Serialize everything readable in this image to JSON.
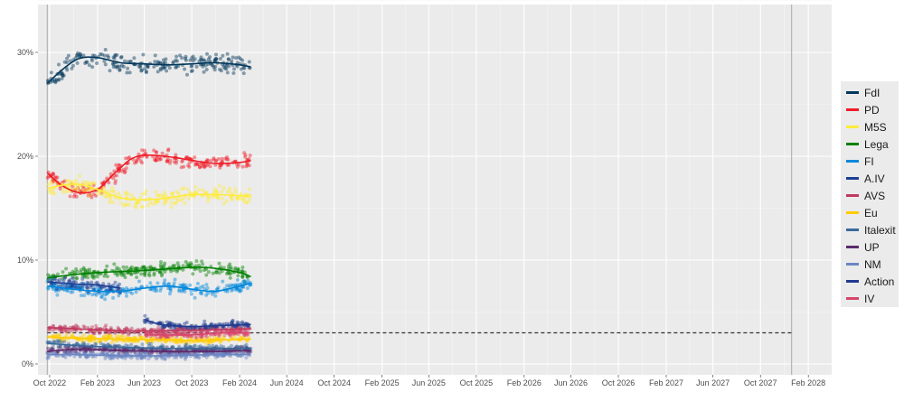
{
  "chart_data": {
    "type": "scatter",
    "title": "",
    "xlabel": "",
    "ylabel": "",
    "x_range": [
      "2022-09-01",
      "2028-04-01"
    ],
    "ylim": [
      0,
      34
    ],
    "y_ticks": [
      {
        "value": 0,
        "label": "0%"
      },
      {
        "value": 10,
        "label": "10%"
      },
      {
        "value": 20,
        "label": "20%"
      },
      {
        "value": 30,
        "label": "30%"
      }
    ],
    "x_ticks": [
      {
        "date": "2022-10-01",
        "label": "Oct 2022"
      },
      {
        "date": "2023-02-01",
        "label": "Feb 2023"
      },
      {
        "date": "2023-06-01",
        "label": "Jun 2023"
      },
      {
        "date": "2023-10-01",
        "label": "Oct 2023"
      },
      {
        "date": "2024-02-01",
        "label": "Feb 2024"
      },
      {
        "date": "2024-06-01",
        "label": "Jun 2024"
      },
      {
        "date": "2024-10-01",
        "label": "Oct 2024"
      },
      {
        "date": "2025-02-01",
        "label": "Feb 2025"
      },
      {
        "date": "2025-06-01",
        "label": "Jun 2025"
      },
      {
        "date": "2025-10-01",
        "label": "Oct 2025"
      },
      {
        "date": "2026-02-01",
        "label": "Feb 2026"
      },
      {
        "date": "2026-06-01",
        "label": "Jun 2026"
      },
      {
        "date": "2026-10-01",
        "label": "Oct 2026"
      },
      {
        "date": "2027-02-01",
        "label": "Feb 2027"
      },
      {
        "date": "2027-06-01",
        "label": "Jun 2027"
      },
      {
        "date": "2027-10-01",
        "label": "Oct 2027"
      },
      {
        "date": "2028-02-01",
        "label": "Feb 2028"
      }
    ],
    "grid": true,
    "legend_position": "right",
    "vertical_lines": [
      "2022-09-25",
      "2027-12-20"
    ],
    "threshold": {
      "value": 3,
      "from": "2022-09-25",
      "to": "2027-12-20",
      "style": "dashed"
    },
    "series": [
      {
        "name": "FdI",
        "color": "#03385c",
        "trend": [
          [
            "2022-09-25",
            27.0
          ],
          [
            "2022-11-01",
            28.3
          ],
          [
            "2022-12-15",
            29.4
          ],
          [
            "2023-02-01",
            29.5
          ],
          [
            "2023-04-01",
            29.0
          ],
          [
            "2023-06-01",
            28.9
          ],
          [
            "2023-08-01",
            28.8
          ],
          [
            "2023-10-01",
            28.9
          ],
          [
            "2023-12-01",
            29.0
          ],
          [
            "2024-02-01",
            28.8
          ],
          [
            "2024-03-01",
            28.6
          ]
        ]
      },
      {
        "name": "PD",
        "color": "#ef1c27",
        "trend": [
          [
            "2022-09-25",
            18.4
          ],
          [
            "2022-11-01",
            17.2
          ],
          [
            "2022-12-15",
            16.5
          ],
          [
            "2023-02-01",
            16.8
          ],
          [
            "2023-03-15",
            18.3
          ],
          [
            "2023-05-01",
            19.8
          ],
          [
            "2023-06-15",
            20.1
          ],
          [
            "2023-08-15",
            19.9
          ],
          [
            "2023-10-01",
            19.6
          ],
          [
            "2023-12-01",
            19.3
          ],
          [
            "2024-02-01",
            19.4
          ],
          [
            "2024-03-01",
            19.6
          ]
        ]
      },
      {
        "name": "M5S",
        "color": "#ffeb3b",
        "trend": [
          [
            "2022-09-25",
            16.9
          ],
          [
            "2022-11-01",
            17.2
          ],
          [
            "2022-12-15",
            17.3
          ],
          [
            "2023-02-01",
            16.8
          ],
          [
            "2023-04-01",
            16.0
          ],
          [
            "2023-06-01",
            15.8
          ],
          [
            "2023-08-01",
            16.0
          ],
          [
            "2023-10-01",
            16.3
          ],
          [
            "2023-12-01",
            16.3
          ],
          [
            "2024-02-01",
            16.2
          ],
          [
            "2024-03-01",
            16.1
          ]
        ]
      },
      {
        "name": "Lega",
        "color": "#008000",
        "trend": [
          [
            "2022-09-25",
            8.3
          ],
          [
            "2022-12-01",
            8.6
          ],
          [
            "2023-02-01",
            8.8
          ],
          [
            "2023-06-01",
            9.0
          ],
          [
            "2023-10-01",
            9.3
          ],
          [
            "2023-12-01",
            9.2
          ],
          [
            "2024-02-01",
            8.8
          ],
          [
            "2024-03-01",
            8.4
          ]
        ]
      },
      {
        "name": "FI",
        "color": "#0087dc",
        "trend": [
          [
            "2022-09-25",
            7.5
          ],
          [
            "2022-12-01",
            7.2
          ],
          [
            "2023-02-01",
            7.0
          ],
          [
            "2023-04-01",
            7.0
          ],
          [
            "2023-06-01",
            7.3
          ],
          [
            "2023-08-01",
            7.5
          ],
          [
            "2023-10-01",
            7.2
          ],
          [
            "2023-12-01",
            7.0
          ],
          [
            "2024-02-01",
            7.5
          ],
          [
            "2024-03-01",
            7.8
          ]
        ]
      },
      {
        "name": "A.IV",
        "color": "#1c3f94",
        "trend": [
          [
            "2022-09-25",
            7.9
          ],
          [
            "2022-12-01",
            7.7
          ],
          [
            "2023-02-01",
            7.6
          ],
          [
            "2023-04-01",
            7.3
          ]
        ]
      },
      {
        "name": "AVS",
        "color": "#c0395f",
        "trend": [
          [
            "2022-09-25",
            3.5
          ],
          [
            "2022-12-01",
            3.4
          ],
          [
            "2023-04-01",
            3.2
          ],
          [
            "2023-08-01",
            3.2
          ],
          [
            "2023-12-01",
            3.3
          ],
          [
            "2024-03-01",
            3.4
          ]
        ]
      },
      {
        "name": "Eu",
        "color": "#ffcc00",
        "trend": [
          [
            "2022-09-25",
            2.6
          ],
          [
            "2022-12-01",
            2.5
          ],
          [
            "2023-04-01",
            2.4
          ],
          [
            "2023-08-01",
            2.3
          ],
          [
            "2023-12-01",
            2.3
          ],
          [
            "2024-03-01",
            2.4
          ]
        ]
      },
      {
        "name": "Italexit",
        "color": "#3a6a9b",
        "trend": [
          [
            "2022-09-25",
            2.0
          ],
          [
            "2022-12-01",
            1.8
          ],
          [
            "2023-04-01",
            1.6
          ],
          [
            "2023-08-01",
            1.5
          ],
          [
            "2023-12-01",
            1.5
          ],
          [
            "2024-03-01",
            1.5
          ]
        ]
      },
      {
        "name": "UP",
        "color": "#5b2a6d",
        "trend": [
          [
            "2022-09-25",
            1.2
          ],
          [
            "2022-12-01",
            1.4
          ],
          [
            "2023-04-01",
            1.3
          ],
          [
            "2023-08-01",
            1.2
          ],
          [
            "2023-12-01",
            1.2
          ],
          [
            "2024-03-01",
            1.3
          ]
        ]
      },
      {
        "name": "NM",
        "color": "#6b86c4",
        "trend": [
          [
            "2022-09-25",
            0.9
          ],
          [
            "2022-12-01",
            0.9
          ],
          [
            "2023-04-01",
            0.8
          ],
          [
            "2023-08-01",
            0.8
          ],
          [
            "2023-12-01",
            0.9
          ],
          [
            "2024-03-01",
            0.9
          ]
        ]
      },
      {
        "name": "Action",
        "color": "#203a8f",
        "trend": [
          [
            "2023-06-01",
            4.3
          ],
          [
            "2023-07-15",
            3.8
          ],
          [
            "2023-10-01",
            3.6
          ],
          [
            "2023-12-15",
            3.7
          ],
          [
            "2024-03-01",
            3.8
          ]
        ]
      },
      {
        "name": "IV",
        "color": "#d6456a",
        "trend": [
          [
            "2023-06-01",
            2.8
          ],
          [
            "2023-10-01",
            2.8
          ],
          [
            "2023-12-15",
            3.0
          ],
          [
            "2024-03-01",
            3.0
          ]
        ]
      }
    ]
  }
}
